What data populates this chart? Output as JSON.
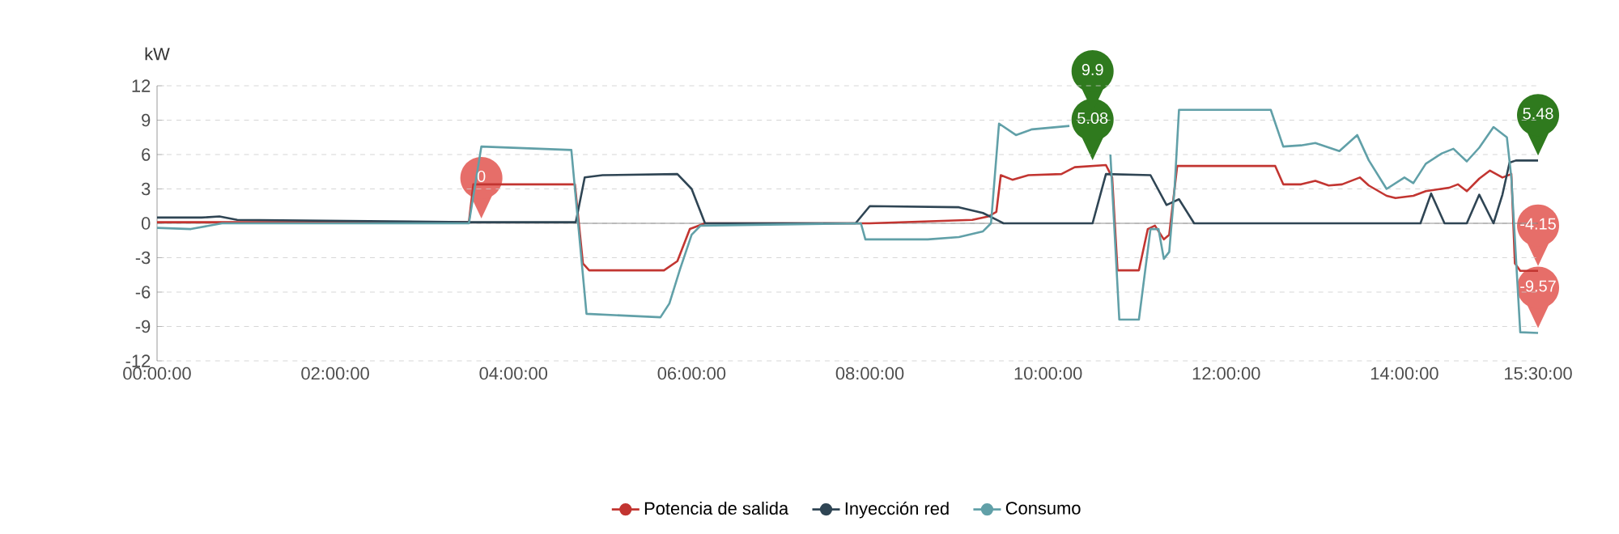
{
  "chart_data": {
    "type": "line",
    "ylabel": "kW",
    "xlim": [
      0,
      15.5
    ],
    "ylim": [
      -12,
      12
    ],
    "xticks": [
      {
        "value": 0,
        "label": "00:00:00"
      },
      {
        "value": 2,
        "label": "02:00:00"
      },
      {
        "value": 4,
        "label": "04:00:00"
      },
      {
        "value": 6,
        "label": "06:00:00"
      },
      {
        "value": 8,
        "label": "08:00:00"
      },
      {
        "value": 10,
        "label": "10:00:00"
      },
      {
        "value": 12,
        "label": "12:00:00"
      },
      {
        "value": 14,
        "label": "14:00:00"
      },
      {
        "value": 15.5,
        "label": "15:30:00"
      }
    ],
    "yticks": [
      -12,
      -9,
      -6,
      -3,
      0,
      3,
      6,
      9,
      12
    ],
    "grid": "y",
    "legend": "bottom",
    "marker": "none",
    "line_style": "solid",
    "series": [
      {
        "name": "Potencia de salida",
        "color": "#c23531",
        "x": [
          0,
          3.5,
          3.55,
          4.69,
          4.78,
          4.85,
          5.69,
          5.84,
          5.93,
          5.98,
          6.15,
          8.0,
          9.15,
          9.33,
          9.42,
          9.47,
          9.6,
          9.78,
          10.15,
          10.3,
          10.65,
          10.72,
          10.78,
          11.02,
          11.12,
          11.2,
          11.3,
          11.36,
          11.45,
          12.55,
          12.64,
          12.84,
          13.0,
          13.15,
          13.3,
          13.5,
          13.6,
          13.8,
          13.9,
          14.1,
          14.24,
          14.5,
          14.6,
          14.7,
          14.84,
          14.96,
          15.1,
          15.2,
          15.24,
          15.3,
          15.5
        ],
        "values": [
          0.1,
          0.1,
          3.4,
          3.4,
          -3.5,
          -4.1,
          -4.1,
          -3.3,
          -1.5,
          -0.5,
          0,
          0,
          0.3,
          0.6,
          1.0,
          4.2,
          3.8,
          4.2,
          4.3,
          4.9,
          5.08,
          4.0,
          -4.1,
          -4.1,
          -0.5,
          -0.2,
          -1.4,
          -1.0,
          5.0,
          5.0,
          3.4,
          3.4,
          3.7,
          3.3,
          3.4,
          4.0,
          3.3,
          2.4,
          2.2,
          2.4,
          2.8,
          3.1,
          3.4,
          2.8,
          3.9,
          4.6,
          4.0,
          4.3,
          -3.5,
          -4.15,
          -4.15
        ]
      },
      {
        "name": "Inyección red",
        "color": "#2f4554",
        "x": [
          0,
          0.5,
          0.7,
          0.9,
          3.5,
          4.7,
          4.8,
          5.0,
          5.84,
          6.0,
          6.1,
          6.15,
          7.84,
          8.0,
          9.0,
          9.27,
          9.45,
          9.5,
          10.5,
          10.65,
          11.15,
          11.33,
          11.47,
          11.64,
          14.18,
          14.3,
          14.45,
          14.7,
          14.84,
          15.0,
          15.1,
          15.18,
          15.25,
          15.5
        ],
        "values": [
          0.5,
          0.5,
          0.6,
          0.3,
          0.1,
          0.1,
          4.0,
          4.2,
          4.3,
          3.0,
          1.0,
          0,
          0,
          1.5,
          1.4,
          0.9,
          0.2,
          0,
          0,
          4.3,
          4.2,
          1.6,
          2.1,
          0,
          0,
          2.6,
          0,
          0,
          2.5,
          0,
          2.5,
          5.3,
          5.48,
          5.48
        ]
      },
      {
        "name": "Consumo",
        "color": "#61a0a8",
        "x": [
          0,
          0.38,
          0.73,
          3.5,
          3.64,
          4.65,
          4.82,
          5.65,
          5.75,
          5.87,
          6.0,
          6.1,
          7.9,
          7.95,
          8.65,
          9.0,
          9.27,
          9.36,
          9.45,
          9.64,
          9.82,
          10.24,
          10.6,
          10.7,
          10.8,
          11.02,
          11.15,
          11.24,
          11.3,
          11.36,
          11.42,
          11.47,
          12.5,
          12.64,
          12.84,
          13.0,
          13.27,
          13.47,
          13.6,
          13.8,
          14.0,
          14.1,
          14.24,
          14.42,
          14.55,
          14.7,
          14.84,
          15.0,
          15.15,
          15.2,
          15.3,
          15.5
        ],
        "values": [
          -0.4,
          -0.5,
          0,
          0,
          6.7,
          6.4,
          -7.9,
          -8.2,
          -7.0,
          -4.0,
          -1.0,
          -0.2,
          0,
          -1.4,
          -1.4,
          -1.2,
          -0.7,
          0,
          8.7,
          7.7,
          8.2,
          8.5,
          null,
          6,
          -8.4,
          -8.4,
          -0.5,
          -0.5,
          -3.1,
          -2.5,
          3,
          9.9,
          9.9,
          6.7,
          6.8,
          7.0,
          6.3,
          7.7,
          5.5,
          3.0,
          4.0,
          3.5,
          5.2,
          6.1,
          6.5,
          5.4,
          6.6,
          8.4,
          7.5,
          4.0,
          -9.5,
          -9.57
        ]
      }
    ],
    "annotations": [
      {
        "text": "0",
        "x": 3.64,
        "y": 0
      },
      {
        "text": "5.08",
        "x": 10.5,
        "y": 5.08
      },
      "9.9",
      {
        "text": "5.48",
        "x": 15.5,
        "y": 5.48
      },
      {
        "text": "-4.15",
        "x": 15.5,
        "y": -4.15
      },
      {
        "text": "-9.57",
        "x": 15.5,
        "y": -9.57
      }
    ]
  }
}
